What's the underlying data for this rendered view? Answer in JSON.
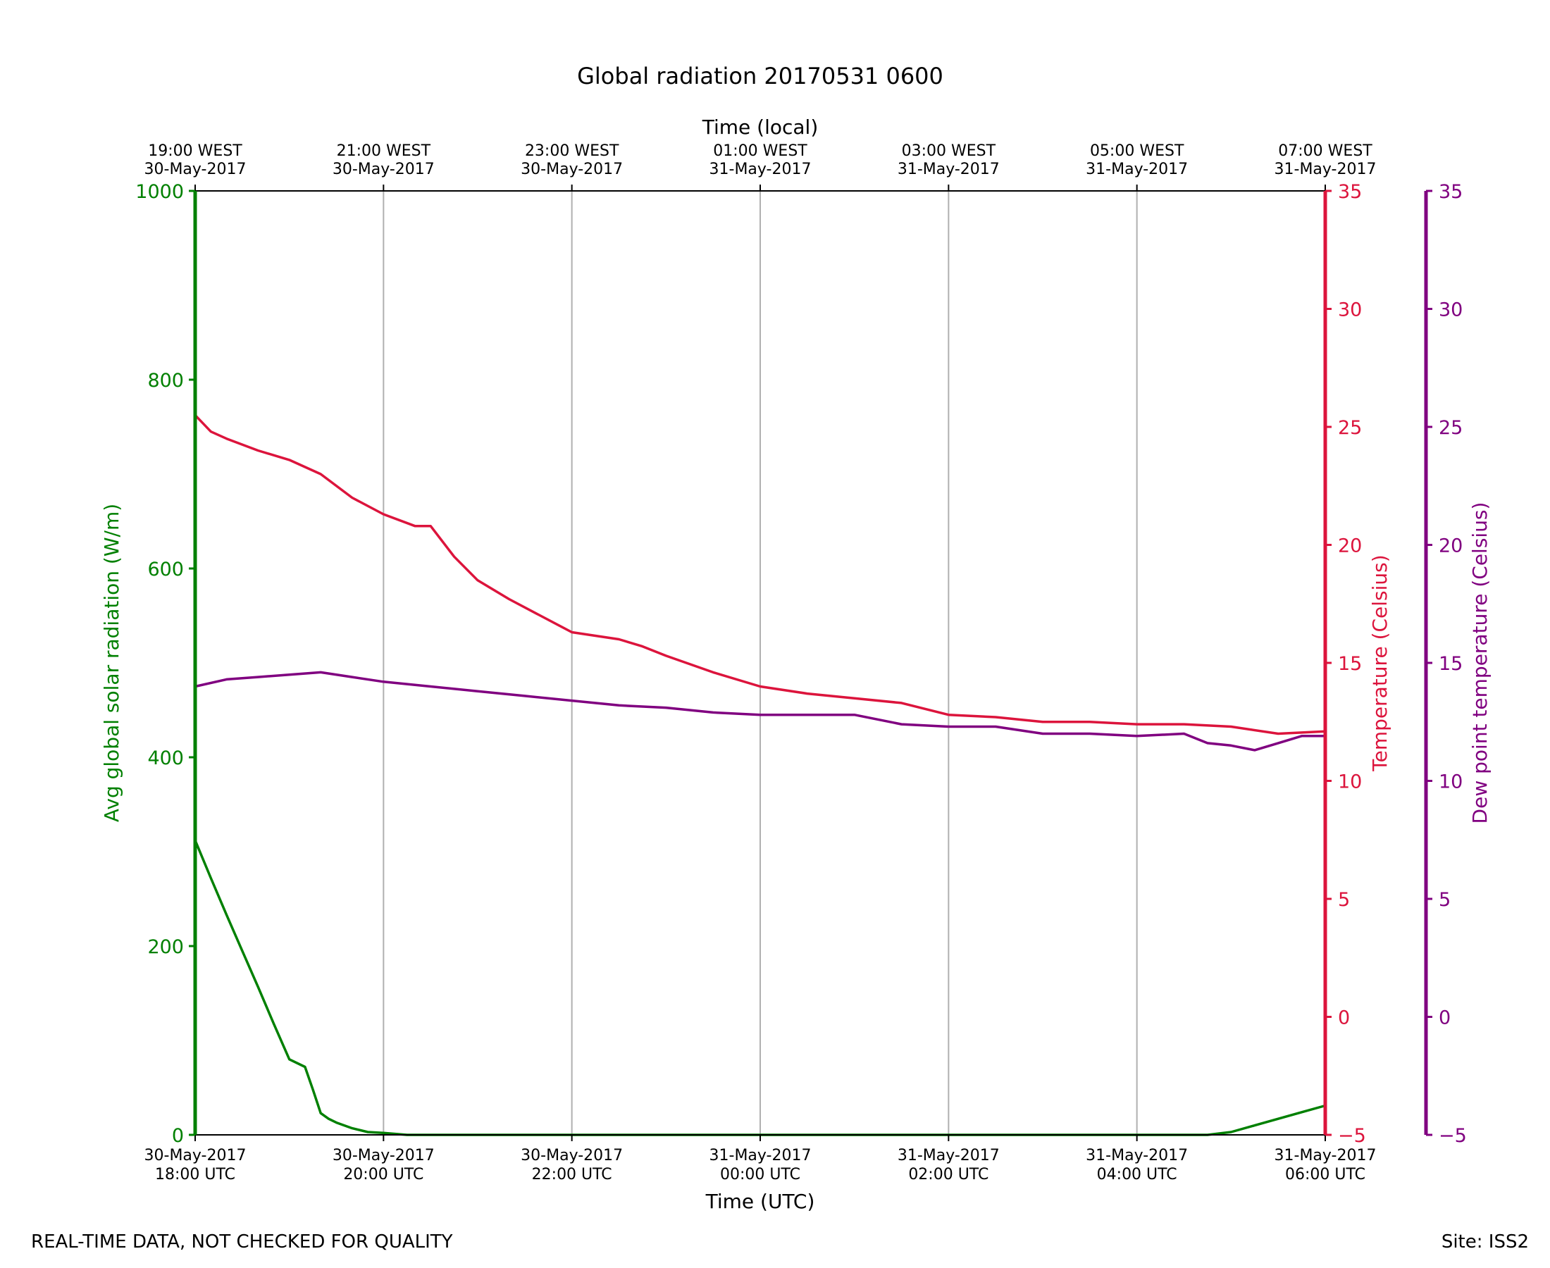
{
  "chart_data": {
    "type": "line",
    "title": "Global radiation 20170531 0600",
    "xlabel_bottom": "Time (UTC)",
    "xlabel_top": "Time (local)",
    "x_ticks_utc": [
      {
        "line1": "30-May-2017",
        "line2": "18:00 UTC"
      },
      {
        "line1": "30-May-2017",
        "line2": "20:00 UTC"
      },
      {
        "line1": "30-May-2017",
        "line2": "22:00 UTC"
      },
      {
        "line1": "31-May-2017",
        "line2": "00:00 UTC"
      },
      {
        "line1": "31-May-2017",
        "line2": "02:00 UTC"
      },
      {
        "line1": "31-May-2017",
        "line2": "04:00 UTC"
      },
      {
        "line1": "31-May-2017",
        "line2": "06:00 UTC"
      }
    ],
    "x_ticks_local": [
      {
        "line1": "19:00 WEST",
        "line2": "30-May-2017"
      },
      {
        "line1": "21:00 WEST",
        "line2": "30-May-2017"
      },
      {
        "line1": "23:00 WEST",
        "line2": "30-May-2017"
      },
      {
        "line1": "01:00 WEST",
        "line2": "31-May-2017"
      },
      {
        "line1": "03:00 WEST",
        "line2": "31-May-2017"
      },
      {
        "line1": "05:00 WEST",
        "line2": "31-May-2017"
      },
      {
        "line1": "07:00 WEST",
        "line2": "31-May-2017"
      }
    ],
    "xlim": [
      "2017-05-30 18:00",
      "2017-05-31 06:00"
    ],
    "grid": "vertical",
    "axes": {
      "radiation": {
        "label": "Avg global solar radiation (W/m)",
        "ylim": [
          0,
          1000
        ],
        "ticks": [
          0,
          200,
          400,
          600,
          800,
          1000
        ],
        "color": "#008000",
        "side": "left"
      },
      "temperature": {
        "label": "Temperature (Celsius)",
        "ylim": [
          -5,
          35
        ],
        "ticks": [
          -5,
          0,
          5,
          10,
          15,
          20,
          25,
          30,
          35
        ],
        "color": "#dc143c",
        "side": "right"
      },
      "dewpoint": {
        "label": "Dew point temperature (Celsius)",
        "ylim": [
          -5,
          35
        ],
        "ticks": [
          -5,
          0,
          5,
          10,
          15,
          20,
          25,
          30,
          35
        ],
        "color": "#800080",
        "side": "right-outer"
      }
    },
    "series": [
      {
        "key": "radiation",
        "axis": "radiation",
        "color": "#008000",
        "x": [
          "2017-05-30 18:00",
          "2017-05-30 18:10",
          "2017-05-30 18:20",
          "2017-05-30 18:30",
          "2017-05-30 18:40",
          "2017-05-30 18:50",
          "2017-05-30 19:00",
          "2017-05-30 19:10",
          "2017-05-30 19:15",
          "2017-05-30 19:20",
          "2017-05-30 19:25",
          "2017-05-30 19:30",
          "2017-05-30 19:40",
          "2017-05-30 19:50",
          "2017-05-30 20:00",
          "2017-05-30 20:15",
          "2017-05-30 20:30",
          "2017-05-31 04:45",
          "2017-05-31 05:00",
          "2017-05-31 05:15",
          "2017-05-31 05:30",
          "2017-05-31 05:45",
          "2017-05-31 06:00"
        ],
        "y": [
          312,
          272,
          233,
          195,
          157,
          118,
          80,
          72,
          48,
          23,
          17,
          13,
          7,
          3,
          2,
          0,
          0,
          0,
          3,
          10,
          17,
          24,
          31
        ]
      },
      {
        "key": "temperature",
        "axis": "temperature",
        "color": "#dc143c",
        "x": [
          "2017-05-30 18:00",
          "2017-05-30 18:10",
          "2017-05-30 18:20",
          "2017-05-30 18:40",
          "2017-05-30 19:00",
          "2017-05-30 19:20",
          "2017-05-30 19:40",
          "2017-05-30 20:00",
          "2017-05-30 20:20",
          "2017-05-30 20:30",
          "2017-05-30 20:45",
          "2017-05-30 21:00",
          "2017-05-30 21:20",
          "2017-05-30 21:40",
          "2017-05-30 22:00",
          "2017-05-30 22:30",
          "2017-05-30 22:45",
          "2017-05-30 23:00",
          "2017-05-30 23:30",
          "2017-05-31 00:00",
          "2017-05-31 00:30",
          "2017-05-31 01:00",
          "2017-05-31 01:30",
          "2017-05-31 02:00",
          "2017-05-31 02:30",
          "2017-05-31 03:00",
          "2017-05-31 03:30",
          "2017-05-31 04:00",
          "2017-05-31 04:30",
          "2017-05-31 05:00",
          "2017-05-31 05:30",
          "2017-05-31 06:00"
        ],
        "y": [
          25.5,
          24.8,
          24.5,
          24.0,
          23.6,
          23.0,
          22.0,
          21.3,
          20.8,
          20.8,
          19.5,
          18.5,
          17.7,
          17.0,
          16.3,
          16.0,
          15.7,
          15.3,
          14.6,
          14.0,
          13.7,
          13.5,
          13.3,
          12.8,
          12.7,
          12.5,
          12.5,
          12.4,
          12.4,
          12.3,
          12.0,
          12.1
        ]
      },
      {
        "key": "dewpoint",
        "axis": "dewpoint",
        "color": "#800080",
        "x": [
          "2017-05-30 18:00",
          "2017-05-30 18:20",
          "2017-05-30 18:40",
          "2017-05-30 19:00",
          "2017-05-30 19:20",
          "2017-05-30 19:40",
          "2017-05-30 20:00",
          "2017-05-30 20:30",
          "2017-05-30 21:00",
          "2017-05-30 21:30",
          "2017-05-30 22:00",
          "2017-05-30 22:30",
          "2017-05-30 23:00",
          "2017-05-30 23:30",
          "2017-05-31 00:00",
          "2017-05-31 00:30",
          "2017-05-31 01:00",
          "2017-05-31 01:30",
          "2017-05-31 02:00",
          "2017-05-31 02:30",
          "2017-05-31 03:00",
          "2017-05-31 03:30",
          "2017-05-31 04:00",
          "2017-05-31 04:30",
          "2017-05-31 04:45",
          "2017-05-31 05:00",
          "2017-05-31 05:15",
          "2017-05-31 05:30",
          "2017-05-31 05:45",
          "2017-05-31 06:00"
        ],
        "y": [
          14.0,
          14.3,
          14.4,
          14.5,
          14.6,
          14.4,
          14.2,
          14.0,
          13.8,
          13.6,
          13.4,
          13.2,
          13.1,
          12.9,
          12.8,
          12.8,
          12.8,
          12.4,
          12.3,
          12.3,
          12.0,
          12.0,
          11.9,
          12.0,
          11.6,
          11.5,
          11.3,
          11.6,
          11.9,
          11.9
        ]
      }
    ]
  },
  "footer": {
    "left": "REAL-TIME DATA, NOT CHECKED FOR QUALITY",
    "right": "Site: ISS2"
  }
}
